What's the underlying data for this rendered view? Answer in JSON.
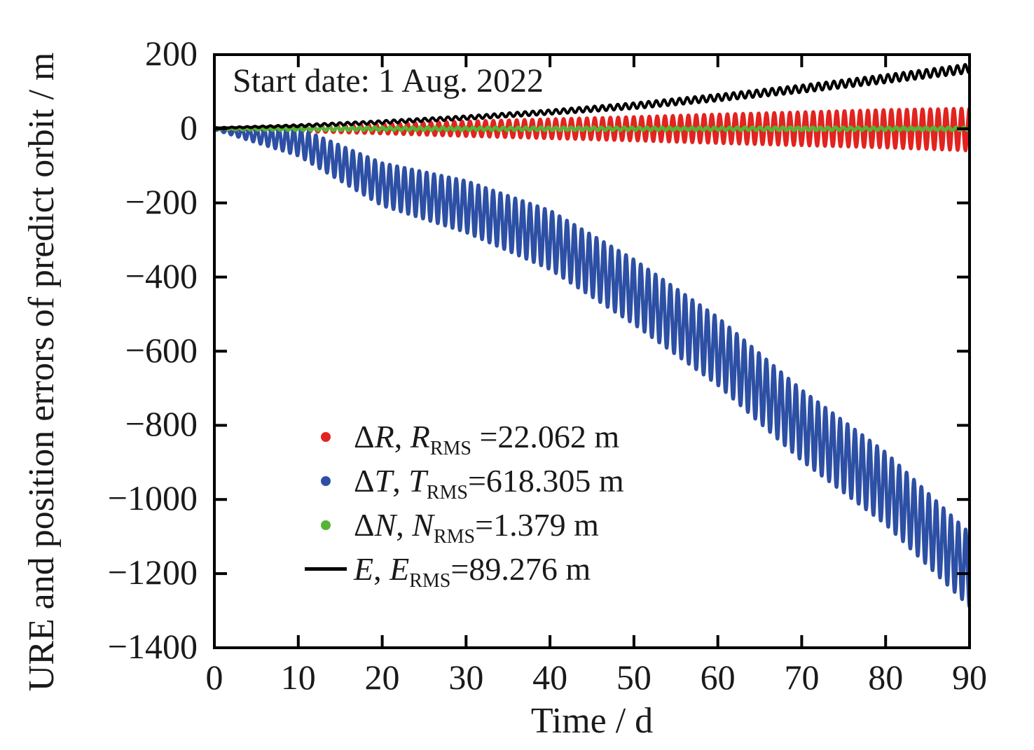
{
  "chart_data": {
    "type": "line",
    "annotation": "Start date: 1 Aug. 2022",
    "xlabel": "Time / d",
    "ylabel": "URE and position errors of predict orbit / m",
    "xlim": [
      0,
      90
    ],
    "ylim": [
      -1400,
      200
    ],
    "x_ticks": [
      0,
      10,
      20,
      30,
      40,
      50,
      60,
      70,
      80,
      90
    ],
    "x_tick_labels": [
      "0",
      "10",
      "20",
      "30",
      "40",
      "50",
      "60",
      "70",
      "80",
      "90"
    ],
    "y_ticks": [
      200,
      0,
      -200,
      -400,
      -600,
      -800,
      -1000,
      -1200,
      -1400
    ],
    "y_tick_labels": [
      "200",
      "0",
      "−200",
      "−400",
      "−600",
      "−800",
      "−1000",
      "−1200",
      "−1400"
    ],
    "grid": false,
    "legend_position": "inside lower-left-of-center, no frame",
    "axis_color": "#000000",
    "oscillation_note": "Each series oscillates with ~0.9 d period; envelope given by center/amplitude samples at t_samples (values in metres, read from plot)",
    "series": [
      {
        "name": "ΔR",
        "color": "#e2231f",
        "marker": "dot",
        "rms_m": 22.062,
        "period_d": 0.93,
        "phase_rad": 3.14159,
        "t_samples": [
          0,
          10,
          20,
          30,
          40,
          50,
          60,
          70,
          80,
          90
        ],
        "center": [
          0,
          0,
          0,
          0,
          0,
          0,
          0,
          0,
          0,
          -2
        ],
        "amplitude": [
          1,
          7,
          13,
          20,
          26,
          32,
          39,
          45,
          51,
          57
        ]
      },
      {
        "name": "ΔT",
        "color": "#2d4fa4",
        "marker": "dot",
        "rms_m": 618.305,
        "period_d": 0.88,
        "phase_rad": 3.14159,
        "t_samples": [
          0,
          10,
          20,
          30,
          40,
          50,
          60,
          70,
          80,
          90
        ],
        "center": [
          0,
          -35,
          -150,
          -210,
          -300,
          -440,
          -600,
          -800,
          -970,
          -1190
        ],
        "amplitude": [
          2,
          38,
          58,
          70,
          80,
          88,
          92,
          96,
          98,
          100
        ]
      },
      {
        "name": "ΔN",
        "color": "#56b437",
        "marker": "dot",
        "rms_m": 1.379,
        "period_d": 0.9,
        "phase_rad": 0,
        "t_samples": [
          0,
          10,
          20,
          30,
          40,
          50,
          60,
          70,
          80,
          90
        ],
        "center": [
          0,
          0,
          0,
          0,
          0,
          0,
          0,
          0,
          0,
          0
        ],
        "amplitude": [
          2,
          4,
          4,
          4,
          4,
          4,
          4,
          4,
          4,
          4
        ]
      },
      {
        "name": "E",
        "color": "#000000",
        "marker": "line",
        "rms_m": 89.276,
        "period_d": 0.92,
        "phase_rad": 0,
        "t_samples": [
          0,
          10,
          20,
          30,
          40,
          50,
          60,
          70,
          80,
          90
        ],
        "center": [
          2,
          8,
          18,
          30,
          45,
          62,
          84,
          108,
          135,
          163
        ],
        "amplitude": [
          1,
          3,
          4,
          5,
          6,
          8,
          9,
          10,
          11,
          12
        ]
      }
    ],
    "legend": [
      {
        "prefix": "Δ",
        "var": "R",
        "sep": ", ",
        "var2": "R",
        "sub": "RMS",
        "value": " =22.062 m"
      },
      {
        "prefix": "Δ",
        "var": "T",
        "sep": ", ",
        "var2": "T",
        "sub": "RMS",
        "value": "=618.305 m"
      },
      {
        "prefix": "Δ",
        "var": "N",
        "sep": ", ",
        "var2": "N",
        "sub": "RMS",
        "value": "=1.379 m"
      },
      {
        "prefix": "",
        "var": "E",
        "sep": ", ",
        "var2": "E",
        "sub": "RMS",
        "value": "=89.276 m"
      }
    ]
  }
}
